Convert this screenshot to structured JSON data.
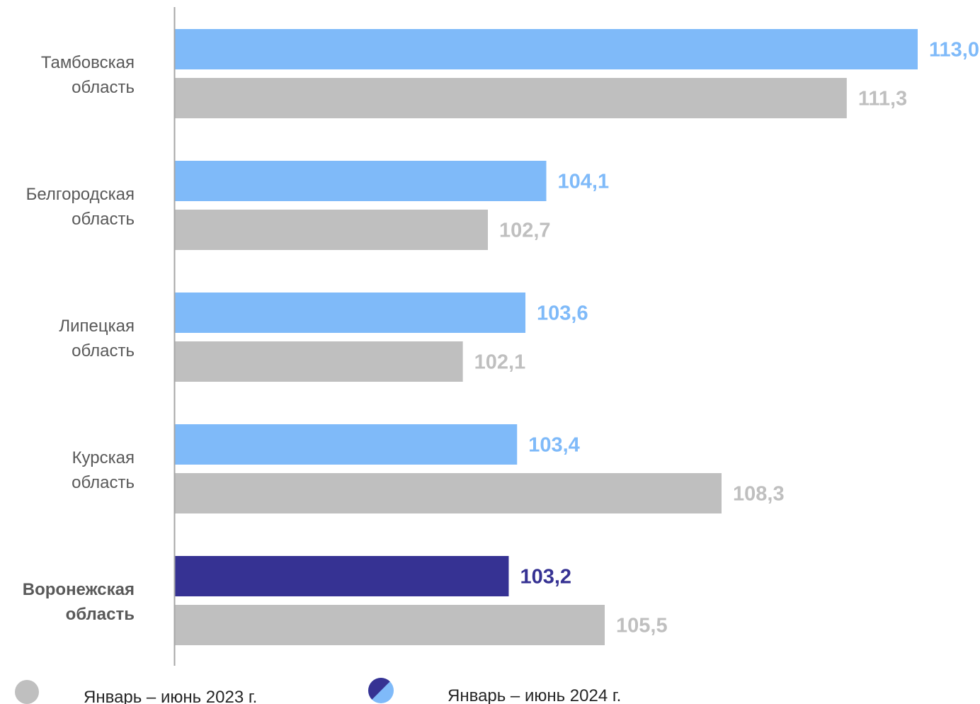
{
  "chart_data": {
    "type": "bar",
    "orientation": "horizontal",
    "title": "",
    "xlabel": "",
    "ylabel": "",
    "grid": false,
    "legend_placement": "bottom",
    "categories": [
      [
        "Тамбовская",
        "область"
      ],
      [
        "Белгородская",
        "область"
      ],
      [
        "Липецкая",
        "область"
      ],
      [
        "Курская",
        "область"
      ],
      [
        "Воронежская",
        "область"
      ]
    ],
    "highlight_index": 4,
    "series": [
      {
        "name": "Январь – июнь 2024 г.",
        "values": [
          113.0,
          104.1,
          103.6,
          103.4,
          103.2
        ],
        "labels": [
          "113,0",
          "104,1",
          "103,6",
          "103,4",
          "103,2"
        ]
      },
      {
        "name": "Январь – июнь 2023 г.",
        "values": [
          111.3,
          102.7,
          102.1,
          108.3,
          105.5
        ],
        "labels": [
          "111,3",
          "102,7",
          "102,1",
          "108,3",
          "105,5"
        ]
      }
    ],
    "axis_range": [
      95.2,
      113.0
    ],
    "colors": {
      "series_2024": "#7fbaf9",
      "series_2024_highlight": "#363293",
      "series_2023": "#bfbfbf",
      "axis": "#a6a6a6"
    }
  },
  "legend": {
    "items": [
      {
        "label": "Январь – июнь 2023 г."
      },
      {
        "label": "Январь – июнь 2024 г."
      }
    ]
  }
}
